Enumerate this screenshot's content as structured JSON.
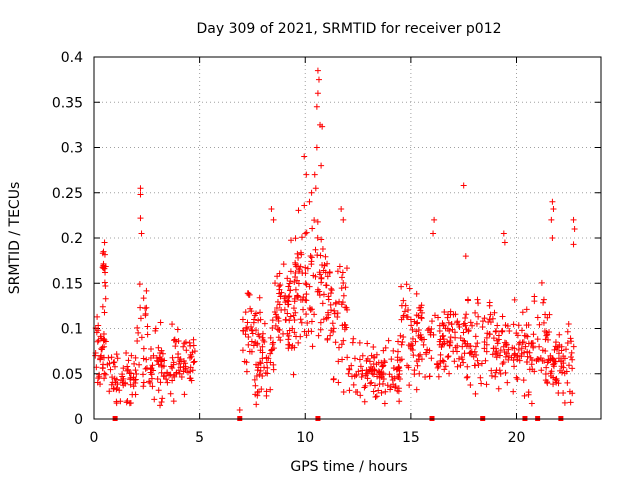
{
  "chart_data": {
    "type": "scatter",
    "title": "Day 309 of 2021, SRMTID for receiver p012",
    "xlabel": "GPS time / hours",
    "ylabel": "SRMTID / TECUs",
    "xlim": [
      0,
      24
    ],
    "ylim": [
      0,
      0.4
    ],
    "x_ticks": [
      0,
      5,
      10,
      15,
      20
    ],
    "y_ticks": [
      0,
      0.05,
      0.1,
      0.15,
      0.2,
      0.25,
      0.3,
      0.35,
      0.4
    ],
    "x_tick_labels": [
      "0",
      "5",
      "10",
      "15",
      "20"
    ],
    "y_tick_labels": [
      "0",
      "0.05",
      "0.1",
      "0.15",
      "0.2",
      "0.25",
      "0.3",
      "0.35",
      "0.4"
    ],
    "grid": true,
    "marker": "+",
    "series_color": "#ff0000",
    "zero_markers_x": [
      1.0,
      6.9,
      10.6,
      16.0,
      18.4,
      20.4,
      21.0,
      22.1
    ],
    "clusters": [
      {
        "x_start": 0.0,
        "x_end": 0.7,
        "y_base": 0.07,
        "y_spread": 0.04,
        "count": 40
      },
      {
        "x_start": 0.4,
        "x_end": 0.6,
        "y_base": 0.16,
        "y_spread": 0.03,
        "count": 14
      },
      {
        "x_start": 0.7,
        "x_end": 2.0,
        "y_base": 0.045,
        "y_spread": 0.025,
        "count": 60
      },
      {
        "x_start": 2.0,
        "x_end": 2.6,
        "y_base": 0.09,
        "y_spread": 0.06,
        "count": 25
      },
      {
        "x_start": 2.6,
        "x_end": 4.8,
        "y_base": 0.06,
        "y_spread": 0.035,
        "count": 110
      },
      {
        "x_start": 7.0,
        "x_end": 7.6,
        "y_base": 0.1,
        "y_spread": 0.05,
        "count": 30
      },
      {
        "x_start": 7.6,
        "x_end": 8.5,
        "y_base": 0.07,
        "y_spread": 0.05,
        "count": 60
      },
      {
        "x_start": 8.5,
        "x_end": 9.5,
        "y_base": 0.12,
        "y_spread": 0.06,
        "count": 70
      },
      {
        "x_start": 9.5,
        "x_end": 11.0,
        "y_base": 0.15,
        "y_spread": 0.07,
        "count": 95
      },
      {
        "x_start": 11.0,
        "x_end": 12.0,
        "y_base": 0.11,
        "y_spread": 0.06,
        "count": 60
      },
      {
        "x_start": 12.0,
        "x_end": 14.5,
        "y_base": 0.05,
        "y_spread": 0.03,
        "count": 120
      },
      {
        "x_start": 14.5,
        "x_end": 16.0,
        "y_base": 0.09,
        "y_spread": 0.05,
        "count": 80
      },
      {
        "x_start": 16.0,
        "x_end": 19.0,
        "y_base": 0.085,
        "y_spread": 0.04,
        "count": 150
      },
      {
        "x_start": 19.0,
        "x_end": 20.5,
        "y_base": 0.08,
        "y_spread": 0.04,
        "count": 80
      },
      {
        "x_start": 20.5,
        "x_end": 21.5,
        "y_base": 0.08,
        "y_spread": 0.05,
        "count": 55
      },
      {
        "x_start": 21.5,
        "x_end": 22.8,
        "y_base": 0.065,
        "y_spread": 0.035,
        "count": 65
      }
    ],
    "peaks": [
      {
        "x": 2.2,
        "y": 0.255
      },
      {
        "x": 2.2,
        "y": 0.248
      },
      {
        "x": 2.2,
        "y": 0.222
      },
      {
        "x": 2.25,
        "y": 0.205
      },
      {
        "x": 0.5,
        "y": 0.195
      },
      {
        "x": 0.45,
        "y": 0.185
      },
      {
        "x": 10.6,
        "y": 0.385
      },
      {
        "x": 10.65,
        "y": 0.375
      },
      {
        "x": 10.6,
        "y": 0.36
      },
      {
        "x": 10.55,
        "y": 0.345
      },
      {
        "x": 10.7,
        "y": 0.325
      },
      {
        "x": 10.8,
        "y": 0.323
      },
      {
        "x": 10.55,
        "y": 0.3
      },
      {
        "x": 10.75,
        "y": 0.28
      },
      {
        "x": 10.45,
        "y": 0.27
      },
      {
        "x": 10.5,
        "y": 0.255
      },
      {
        "x": 10.3,
        "y": 0.25
      },
      {
        "x": 10.2,
        "y": 0.24
      },
      {
        "x": 9.95,
        "y": 0.29
      },
      {
        "x": 10.05,
        "y": 0.27
      },
      {
        "x": 17.5,
        "y": 0.258
      },
      {
        "x": 17.6,
        "y": 0.18
      },
      {
        "x": 21.7,
        "y": 0.24
      },
      {
        "x": 21.75,
        "y": 0.232
      },
      {
        "x": 21.65,
        "y": 0.22
      },
      {
        "x": 21.7,
        "y": 0.2
      },
      {
        "x": 22.7,
        "y": 0.22
      },
      {
        "x": 22.75,
        "y": 0.21
      },
      {
        "x": 22.7,
        "y": 0.193
      },
      {
        "x": 19.4,
        "y": 0.205
      },
      {
        "x": 19.45,
        "y": 0.195
      },
      {
        "x": 16.1,
        "y": 0.22
      },
      {
        "x": 16.05,
        "y": 0.205
      },
      {
        "x": 8.4,
        "y": 0.232
      },
      {
        "x": 8.5,
        "y": 0.22
      },
      {
        "x": 11.7,
        "y": 0.232
      },
      {
        "x": 11.8,
        "y": 0.22
      },
      {
        "x": 6.9,
        "y": 0.01
      }
    ]
  }
}
